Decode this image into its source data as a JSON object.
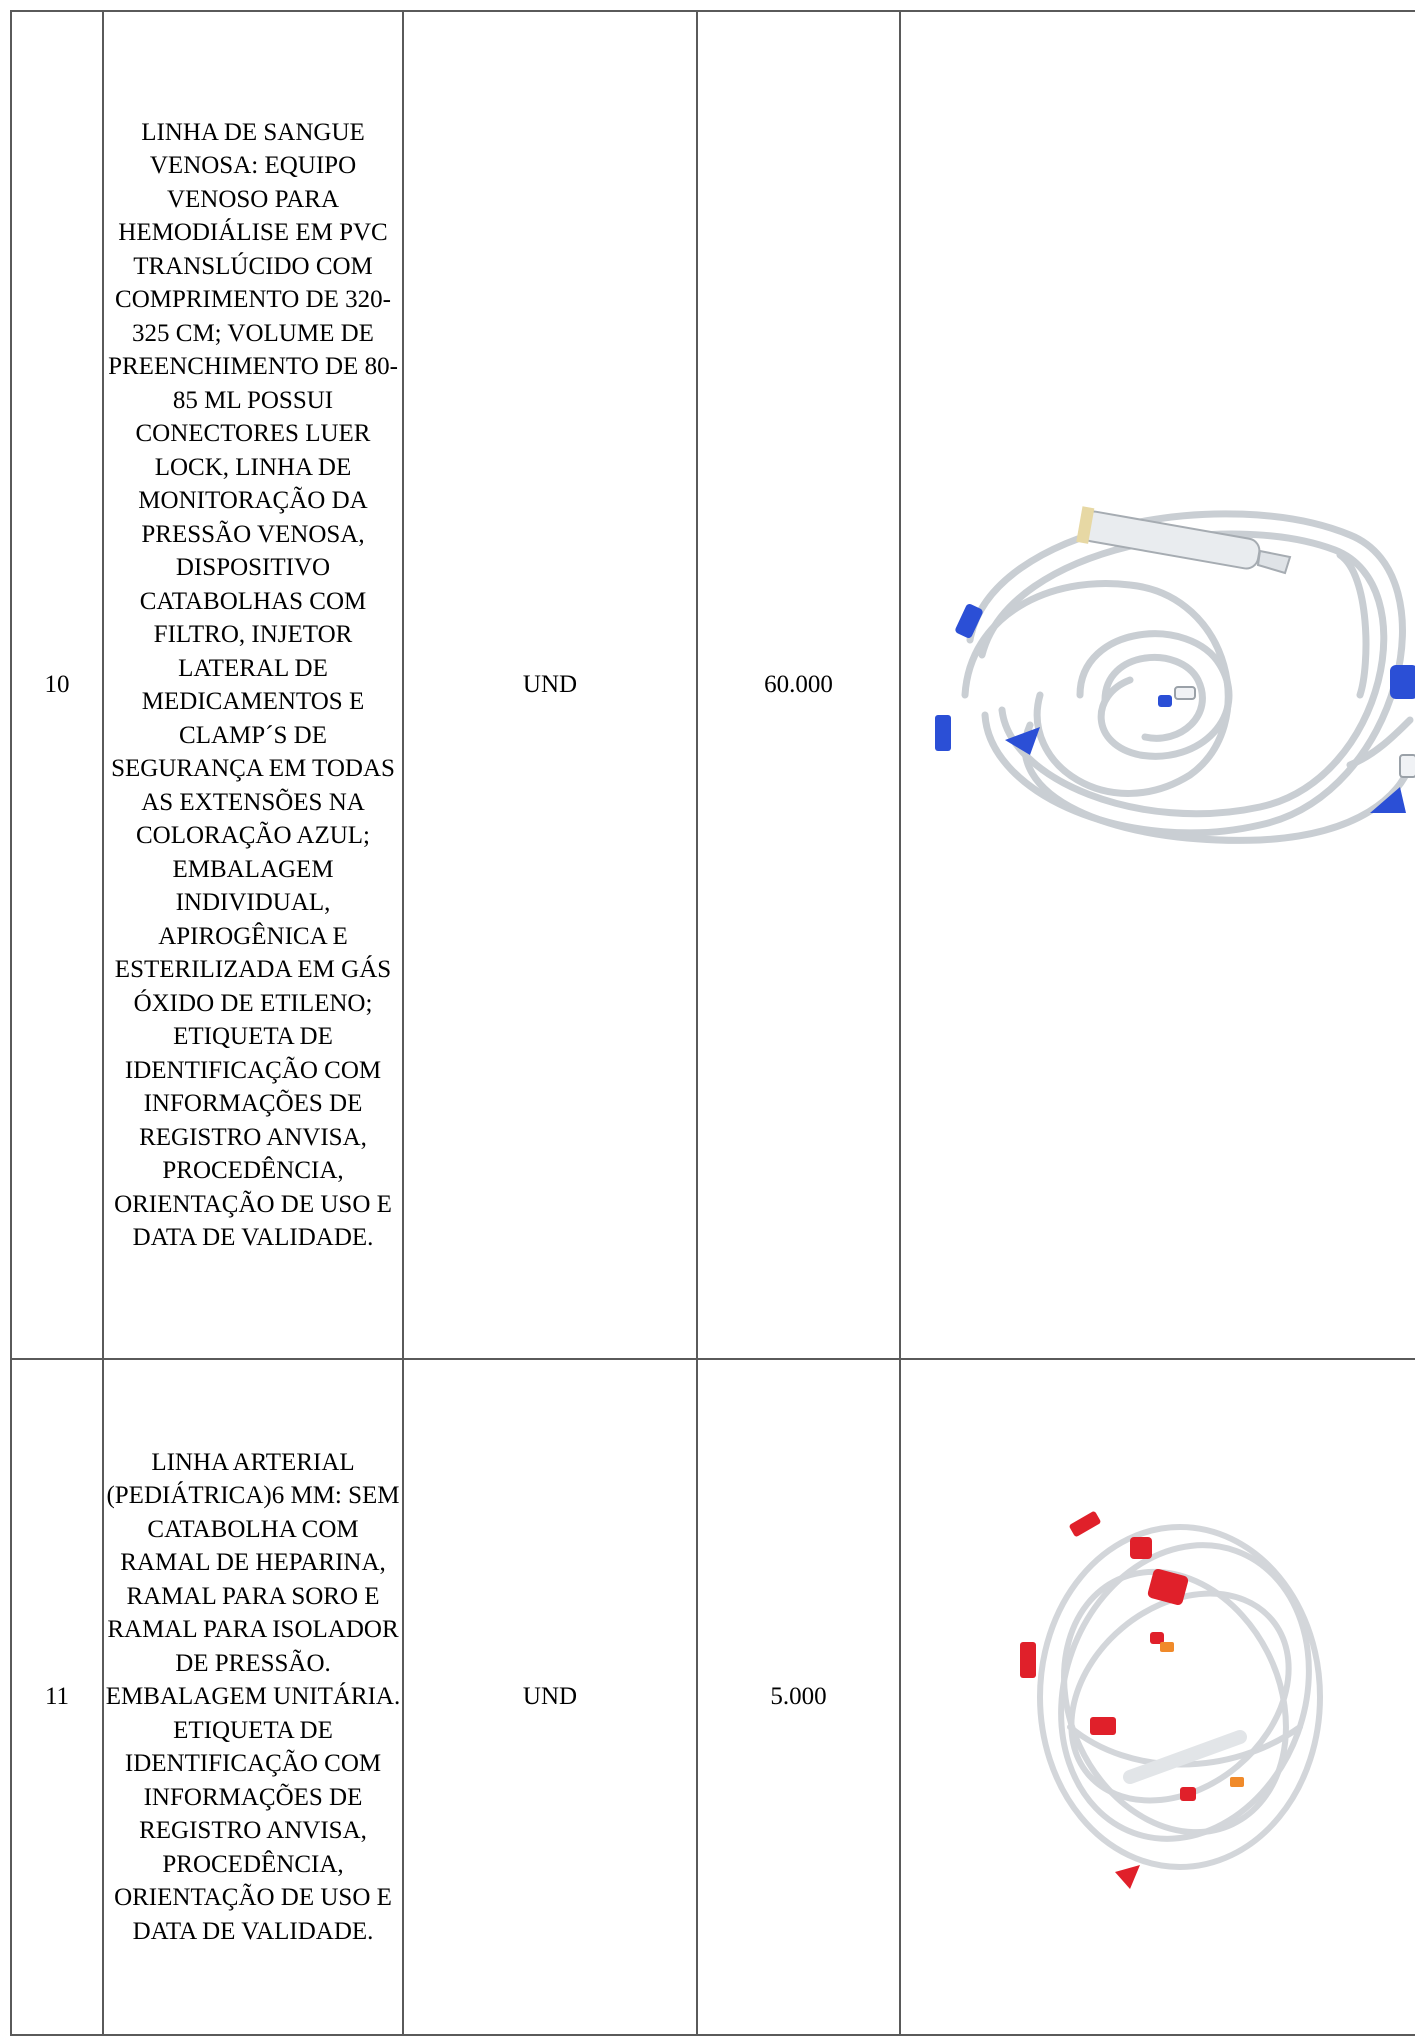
{
  "table": {
    "rows": [
      {
        "item": "10",
        "description": "LINHA DE SANGUE VENOSA: EQUIPO VENOSO PARA HEMODIÁLISE EM PVC TRANSLÚCIDO COM COMPRIMENTO DE 320-325 CM; VOLUME DE PREENCHIMENTO DE 80-85 ML POSSUI CONECTORES LUER LOCK, LINHA DE MONITORAÇÃO DA PRESSÃO VENOSA, DISPOSITIVO CATABOLHAS COM FILTRO, INJETOR LATERAL DE MEDICAMENTOS E CLAMP´S DE SEGURANÇA EM TODAS AS EXTENSÕES NA COLORAÇÃO AZUL; EMBALAGEM INDIVIDUAL, APIROGÊNICA E ESTERILIZADA EM GÁS ÓXIDO DE ETILENO; ETIQUETA DE IDENTIFICAÇÃO COM INFORMAÇÕES DE REGISTRO ANVISA, PROCEDÊNCIA, ORIENTAÇÃO DE USO E DATA DE VALIDADE.",
        "unit": "UND",
        "quantity": "60.000",
        "image": "venous-blood-line-photo",
        "clamp_color": "#2b4fd6"
      },
      {
        "item": "11",
        "description": "LINHA ARTERIAL (PEDIÁTRICA)6 MM: SEM CATABOLHA COM RAMAL DE HEPARINA, RAMAL PARA SORO E RAMAL PARA ISOLADOR DE PRESSÃO. EMBALAGEM UNITÁRIA. ETIQUETA DE IDENTIFICAÇÃO COM INFORMAÇÕES DE REGISTRO ANVISA, PROCEDÊNCIA, ORIENTAÇÃO DE USO E DATA DE VALIDADE.",
        "unit": "UND",
        "quantity": "5.000",
        "image": "arterial-blood-line-photo",
        "clamp_color": "#e0202a"
      }
    ]
  }
}
